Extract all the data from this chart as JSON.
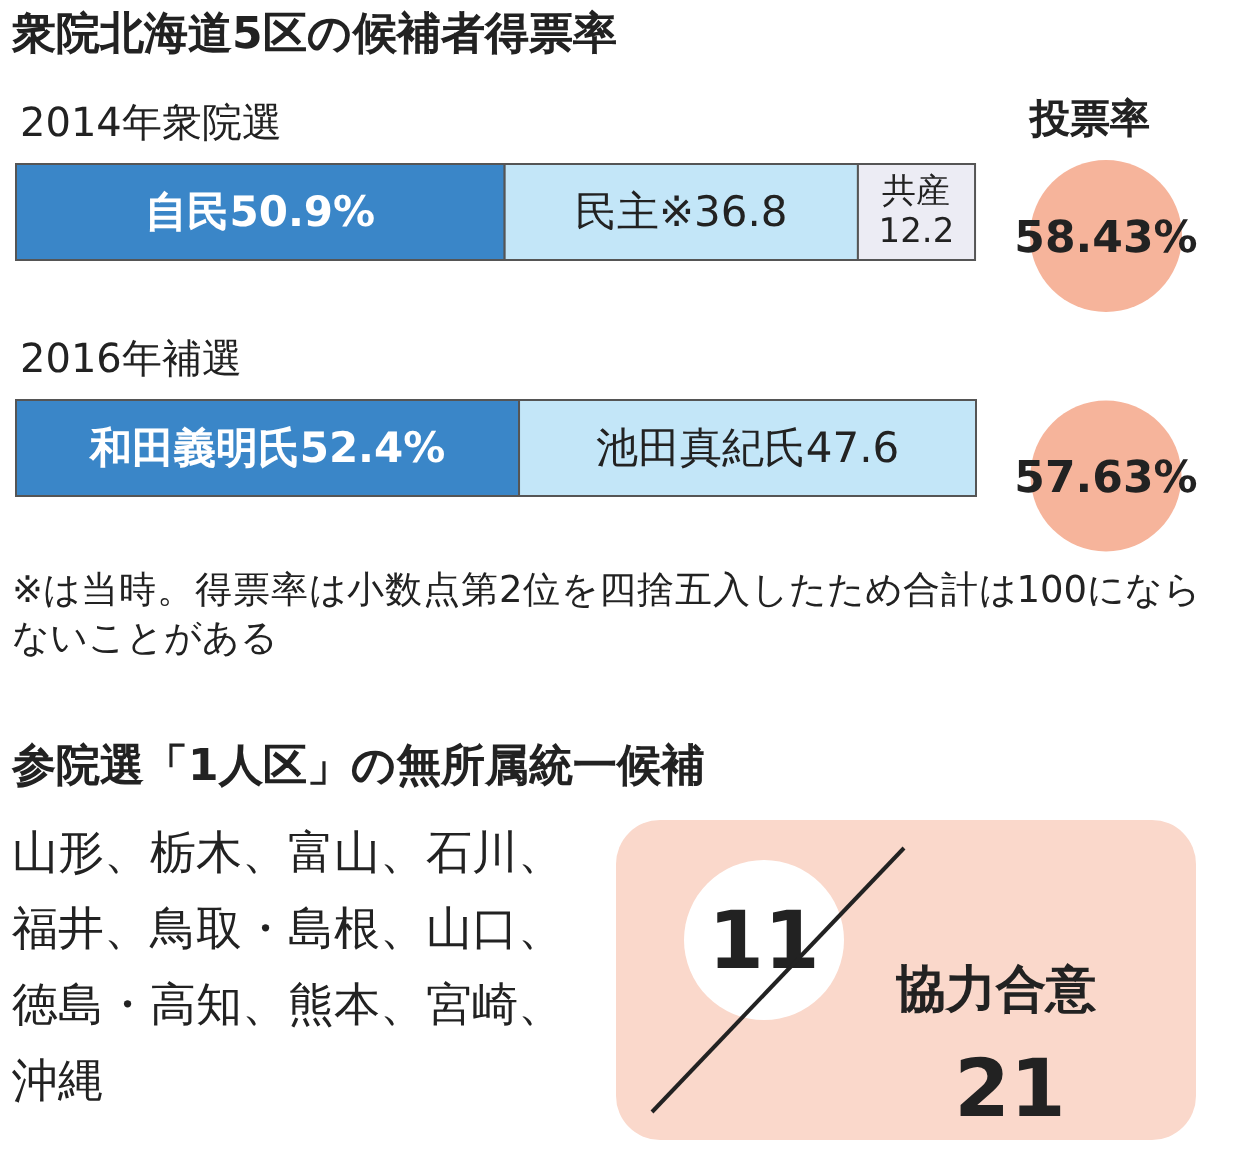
{
  "chart_data": [
    {
      "type": "bar",
      "orientation": "horizontal",
      "stacked": true,
      "title": "衆院北海道5区の候補者得票率",
      "categories": [
        "2014年衆院選",
        "2016年補選"
      ],
      "series": [
        {
          "color": "#3a86c8",
          "values": [
            50.9,
            52.4
          ],
          "value_labels": [
            "自民50.9%",
            "和田義明氏52.4%"
          ]
        },
        {
          "color": "#c3e6f8",
          "values": [
            36.8,
            47.6
          ],
          "value_labels": [
            "民主※36.8",
            "池田真紀氏47.6"
          ]
        },
        {
          "color": "#ececf4",
          "values": [
            12.2,
            null
          ],
          "value_labels": [
            "共産12.2",
            null
          ]
        }
      ],
      "annotations": [
        "※は当時。得票率は小数点第2位を四捨五入したため合計は100にならないことがある"
      ]
    },
    {
      "type": "other",
      "title": "投票率",
      "values": [
        58.43,
        57.63
      ],
      "value_labels": [
        "58.43%",
        "57.63%"
      ],
      "color": "#f6b49b"
    },
    {
      "type": "other",
      "title": "参院選「1人区」の無所属統一候補",
      "values": [
        11,
        21
      ],
      "data_labels": true,
      "color": "#fad8cb",
      "annotations": [
        "山形、栃木、富山、石川、福井、鳥取・島根、山口、徳島・高知、熊本、宮崎、沖縄",
        "協力合意"
      ]
    }
  ]
}
